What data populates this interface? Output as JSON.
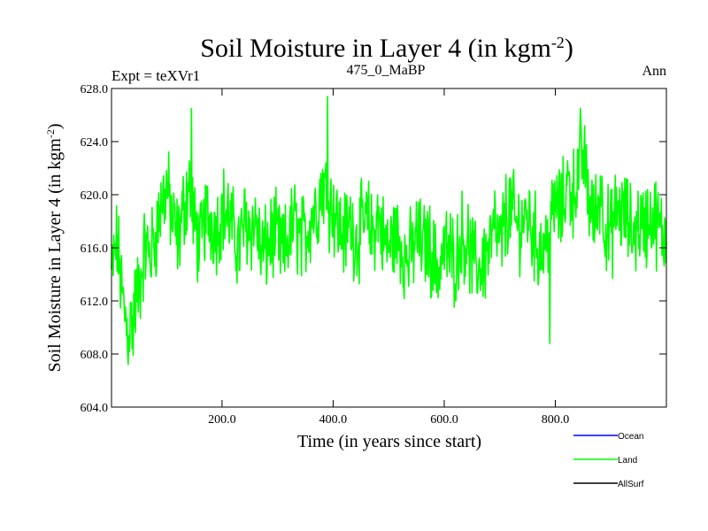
{
  "header": {
    "title_main": "Soil Moisture in Layer 4 (in kgm",
    "title_exp": "-2",
    "title_close": ")",
    "left_label": "Expt = teXVr1",
    "center_label": "475_0_MaBP",
    "right_label": "Ann"
  },
  "legend": {
    "items": [
      {
        "label": "Ocean",
        "color": "#0000ff"
      },
      {
        "label": "Land",
        "color": "#00ff00"
      },
      {
        "label": "AllSurf",
        "color": "#000000"
      }
    ]
  },
  "chart_data": {
    "type": "line",
    "title": "Soil Moisture in Layer 4 (in kgm-2)",
    "xlabel": "Time (in years since start)",
    "ylabel_main": "Soil Moisture in Layer 4 (in kgm",
    "ylabel_exp": "-2",
    "ylabel_close": ")",
    "xlim": [
      1,
      1000
    ],
    "ylim": [
      604.0,
      628.0
    ],
    "xticks": [
      200,
      400,
      600,
      800
    ],
    "xtick_labels": [
      "200.0",
      "400.0",
      "600.0",
      "800.0"
    ],
    "yticks": [
      604,
      608,
      612,
      616,
      620,
      624,
      628
    ],
    "ytick_labels": [
      "604.0",
      "608.0",
      "612.0",
      "616.0",
      "620.0",
      "624.0",
      "628.0"
    ],
    "series": [
      {
        "name": "Land",
        "color": "#00ff00",
        "x_start": 1,
        "x_step": 10,
        "values": [
          614.0,
          616.5,
          612.0,
          609.5,
          611.5,
          613.0,
          616.0,
          615.5,
          617.0,
          619.5,
          620.5,
          618.0,
          616.5,
          619.0,
          621.0,
          617.5,
          616.0,
          618.5,
          618.0,
          617.5,
          619.0,
          618.5,
          617.0,
          616.0,
          618.0,
          617.5,
          618.0,
          615.5,
          616.0,
          617.0,
          616.5,
          615.5,
          617.0,
          618.0,
          616.5,
          617.0,
          618.5,
          619.0,
          621.0,
          619.5,
          619.0,
          617.5,
          617.0,
          618.0,
          616.5,
          617.5,
          618.0,
          617.0,
          618.5,
          616.5,
          616.0,
          617.0,
          616.5,
          615.0,
          615.5,
          617.0,
          616.0,
          616.5,
          615.0,
          614.5,
          616.0,
          615.5,
          615.0,
          617.0,
          616.5,
          615.0,
          614.5,
          615.0,
          616.0,
          617.5,
          616.0,
          618.5,
          619.0,
          617.5,
          618.0,
          618.5,
          617.0,
          616.0,
          616.0,
          617.5,
          619.5,
          618.5,
          621.0,
          620.0,
          621.5,
          623.0,
          619.5,
          618.0,
          620.5,
          617.5,
          617.0,
          619.0,
          618.5,
          618.0,
          617.0,
          618.0,
          617.5,
          618.5,
          618.0,
          617.0
        ],
        "peaks": [
          {
            "x": 40,
            "y": 607.9
          },
          {
            "x": 145,
            "y": 626.5
          },
          {
            "x": 390,
            "y": 627.4
          },
          {
            "x": 790,
            "y": 608.8
          },
          {
            "x": 845,
            "y": 626.5
          }
        ]
      }
    ],
    "legend_position": "bottom-right"
  }
}
